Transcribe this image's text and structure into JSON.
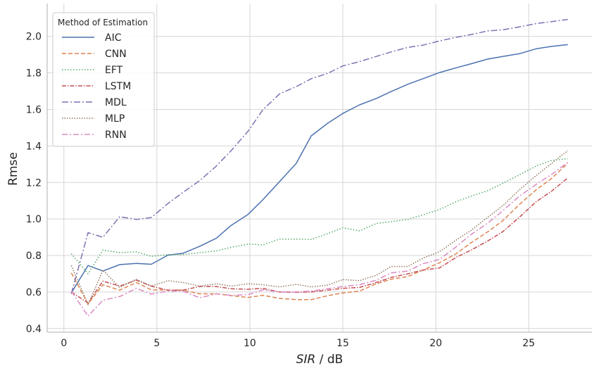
{
  "chart_data": {
    "type": "line",
    "xlabel_italic": "SIR",
    "xlabel_rest": " / dB",
    "ylabel": "Rmse",
    "xlim": [
      -0.9,
      28.4
    ],
    "ylim": [
      0.38,
      2.18
    ],
    "xticks": [
      0,
      5,
      10,
      15,
      20,
      25
    ],
    "yticks": [
      0.4,
      0.6,
      0.8,
      1.0,
      1.2,
      1.4,
      1.6,
      1.8,
      2.0
    ],
    "ytick_labels": [
      "0.4",
      "0.6",
      "0.8",
      "1.0",
      "1.2",
      "1.4",
      "1.6",
      "1.8",
      "2.0"
    ],
    "grid": true,
    "legend": {
      "title": "Method of Estimation",
      "position": "top-left"
    },
    "x": [
      0.4,
      1.3,
      2.1,
      3.0,
      3.9,
      4.7,
      5.6,
      6.4,
      7.3,
      8.2,
      9.0,
      9.9,
      10.7,
      11.6,
      12.5,
      13.3,
      14.2,
      15.0,
      15.9,
      16.8,
      17.6,
      18.5,
      19.3,
      20.2,
      21.1,
      21.9,
      22.8,
      23.6,
      24.5,
      25.4,
      26.2,
      27.1
    ],
    "series": [
      {
        "name": "AIC",
        "color": "#4c72b0",
        "dash": "",
        "values": [
          0.595,
          0.745,
          0.715,
          0.75,
          0.757,
          0.752,
          0.802,
          0.812,
          0.85,
          0.895,
          0.965,
          1.025,
          1.105,
          1.205,
          1.305,
          1.455,
          1.525,
          1.578,
          1.625,
          1.66,
          1.698,
          1.738,
          1.768,
          1.802,
          1.828,
          1.85,
          1.876,
          1.89,
          1.905,
          1.932,
          1.945,
          1.955
        ]
      },
      {
        "name": "CNN",
        "color": "#dd8452",
        "dash": "6,3",
        "values": [
          0.705,
          0.535,
          0.64,
          0.61,
          0.652,
          0.612,
          0.61,
          0.61,
          0.59,
          0.59,
          0.58,
          0.57,
          0.582,
          0.565,
          0.558,
          0.558,
          0.58,
          0.595,
          0.605,
          0.645,
          0.67,
          0.685,
          0.72,
          0.76,
          0.81,
          0.87,
          0.93,
          0.99,
          1.08,
          1.16,
          1.22,
          1.305
        ]
      },
      {
        "name": "EFT",
        "color": "#55a868",
        "dash": "1.5,2.5",
        "values": [
          0.81,
          0.7,
          0.83,
          0.815,
          0.82,
          0.795,
          0.805,
          0.805,
          0.815,
          0.825,
          0.845,
          0.862,
          0.858,
          0.89,
          0.89,
          0.888,
          0.92,
          0.952,
          0.935,
          0.975,
          0.985,
          0.998,
          1.022,
          1.052,
          1.095,
          1.125,
          1.155,
          1.195,
          1.242,
          1.29,
          1.32,
          1.33
        ]
      },
      {
        "name": "LSTM",
        "color": "#c44e52",
        "dash": "6,2,1.5,2",
        "values": [
          0.6,
          0.54,
          0.66,
          0.632,
          0.665,
          0.632,
          0.61,
          0.61,
          0.63,
          0.63,
          0.618,
          0.615,
          0.62,
          0.6,
          0.598,
          0.6,
          0.61,
          0.62,
          0.625,
          0.652,
          0.68,
          0.7,
          0.72,
          0.732,
          0.79,
          0.83,
          0.88,
          0.93,
          1.01,
          1.095,
          1.15,
          1.225
        ]
      },
      {
        "name": "MDL",
        "color": "#8172b3",
        "dash": "9,3,2,3",
        "values": [
          0.59,
          0.925,
          0.9,
          1.012,
          0.998,
          1.008,
          1.085,
          1.145,
          1.21,
          1.29,
          1.375,
          1.48,
          1.598,
          1.685,
          1.725,
          1.768,
          1.798,
          1.838,
          1.862,
          1.89,
          1.915,
          1.94,
          1.952,
          1.975,
          1.995,
          2.01,
          2.03,
          2.036,
          2.052,
          2.07,
          2.08,
          2.093
        ]
      },
      {
        "name": "MLP",
        "color": "#937860",
        "dash": "1.5,2",
        "values": [
          0.745,
          0.53,
          0.72,
          0.625,
          0.67,
          0.632,
          0.662,
          0.652,
          0.632,
          0.645,
          0.632,
          0.645,
          0.64,
          0.628,
          0.642,
          0.628,
          0.638,
          0.668,
          0.662,
          0.692,
          0.74,
          0.74,
          0.785,
          0.82,
          0.885,
          0.938,
          1.01,
          1.072,
          1.16,
          1.238,
          1.302,
          1.375
        ]
      },
      {
        "name": "RNN",
        "color": "#da8bc3",
        "dash": "8,3,2,3",
        "values": [
          0.605,
          0.468,
          0.555,
          0.575,
          0.62,
          0.588,
          0.605,
          0.605,
          0.568,
          0.59,
          0.582,
          0.585,
          0.612,
          0.6,
          0.6,
          0.605,
          0.618,
          0.63,
          0.64,
          0.665,
          0.705,
          0.715,
          0.755,
          0.778,
          0.848,
          0.915,
          0.978,
          1.045,
          1.125,
          1.19,
          1.242,
          1.31
        ]
      }
    ]
  }
}
